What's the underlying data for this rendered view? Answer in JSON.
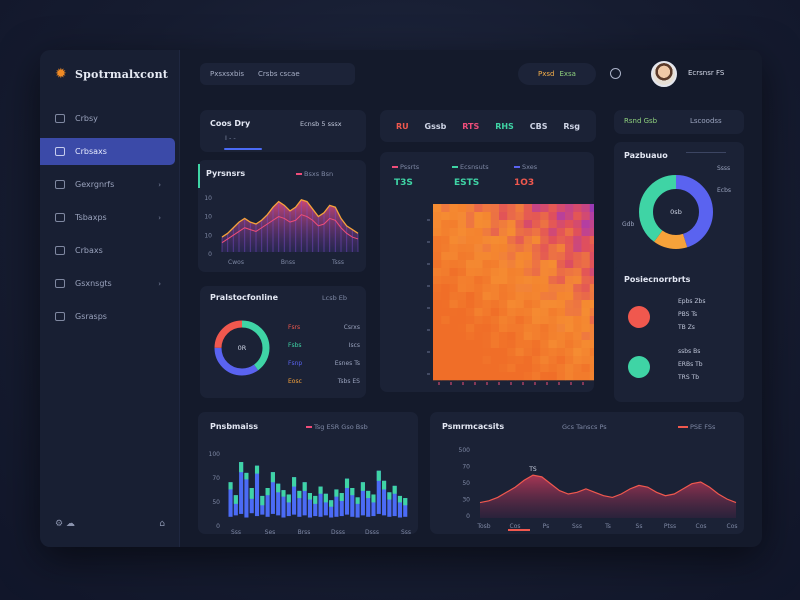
{
  "app": {
    "name": "Spotrmalxcont"
  },
  "sidebar": {
    "items": [
      {
        "label": "Crbsy",
        "caret": false
      },
      {
        "label": "Crbsaxs",
        "caret": false,
        "active": true
      },
      {
        "label": "Gexrgnrfs",
        "caret": true
      },
      {
        "label": "Tsbaxps",
        "caret": true
      },
      {
        "label": "Crbaxs",
        "caret": false
      },
      {
        "label": "Gsxnsgts",
        "caret": true
      },
      {
        "label": "Gsrasps",
        "caret": false
      }
    ],
    "bottom_left": "⚙ ☁",
    "bottom_right": "⌂"
  },
  "topbar": {
    "search_a": "Pxsxsxbis",
    "search_b": "Crsbs cscae",
    "status_pos": "Pxsd",
    "status_lab": "Exsa",
    "user": "Ecrsnsr FS"
  },
  "kpi_strip": {
    "items": [
      {
        "text": "RU",
        "color": "#f0584e"
      },
      {
        "text": "Gssb",
        "color": "#cfd5e6"
      },
      {
        "text": "RTS",
        "color": "#ef4d7a"
      },
      {
        "text": "RHS",
        "color": "#3fd4a5"
      },
      {
        "text": "CBS",
        "color": "#cfd5e6"
      },
      {
        "text": "Rsg",
        "color": "#cfd5e6"
      }
    ]
  },
  "crop_card": {
    "title": "Coos Dry",
    "sub": "I  -  -",
    "right": "Ecnsb  5 sssx"
  },
  "right_top_card": {
    "left": "Rsnd  Gsb",
    "right": "Lscoodss"
  },
  "area_card": {
    "title": "Pyrsnsrs",
    "legend": "Bsxs   Bsn",
    "x_labels": [
      "Cwos",
      "Bnss",
      "Tsss"
    ],
    "y_labels": [
      "10",
      "10",
      "10",
      "0"
    ]
  },
  "heatmap_card": {
    "legend_a": "Pssrts",
    "legend_b": "Ecsnsuts",
    "legend_c": "Sxes",
    "val_a": "T3S",
    "val_b": "ESTS",
    "val_c": "1O3"
  },
  "ring_card": {
    "title": "Pralstocfonline",
    "header_right": "Lcsb  Eb",
    "center": "0R",
    "rows": [
      {
        "label": "Fsrs",
        "value": "Csrxs",
        "color": "#f0584e"
      },
      {
        "label": "Fsbs",
        "value": "Iscs",
        "color": "#3fd4a5"
      },
      {
        "label": "Fsnp",
        "value": "Esnes Ts",
        "color": "#5a63f0"
      },
      {
        "label": "Eosc",
        "value": "Tsbs ES",
        "color": "#f6a23a"
      }
    ],
    "ring": [
      {
        "name": "",
        "value": 40,
        "color": "#3fd4a5"
      },
      {
        "name": "",
        "value": 35,
        "color": "#5a63f0"
      },
      {
        "name": "",
        "value": 25,
        "color": "#f0584e"
      }
    ]
  },
  "donut_card": {
    "title": "Pazbuauo",
    "labels": [
      "Ssss",
      "Ecbs",
      "Gdb"
    ],
    "center": "0sb",
    "donut": [
      {
        "name": "",
        "value": 45,
        "color": "#5a63f0"
      },
      {
        "name": "",
        "value": 15,
        "color": "#f6a23a"
      },
      {
        "name": "",
        "value": 40,
        "color": "#3fd4a5"
      }
    ]
  },
  "people_card": {
    "title": "Posiecnorrbrts",
    "row1": [
      "Epbs  Zbs",
      "PBS  Ts",
      "TB  Zs"
    ],
    "row2": [
      "ssbs  Bs",
      "ERBs  Tb",
      "TRS  Tb"
    ]
  },
  "bar_card": {
    "title": "Pnsbmaiss",
    "legend": "Tsg   ESR   Gso   Bsb",
    "x_labels": [
      "Sss",
      "Ses",
      "Brss",
      "Dsss",
      "Dsss",
      "Sss"
    ],
    "y_labels": [
      "100",
      "70",
      "50",
      "0"
    ]
  },
  "line_card": {
    "title": "Psmrmcacsits",
    "legend": "Gcs   Tanscs   Ps",
    "legend_right": "PSE  FSs",
    "annotation": "TS",
    "x_labels": [
      "Tosb",
      "Cos",
      "Ps",
      "Sss",
      "Ts",
      "Ss",
      "Ptss",
      "Cos",
      "Cos"
    ],
    "y_labels": [
      "500",
      "70",
      "50",
      "30",
      "0"
    ]
  },
  "chart_data": [
    {
      "type": "area",
      "title": "Pyrsnsrs",
      "x": [
        0,
        1,
        2,
        3,
        4,
        5,
        6,
        7,
        8,
        9,
        10,
        11,
        12,
        13,
        14,
        15,
        16,
        17,
        18,
        19,
        20,
        21,
        22,
        23,
        24
      ],
      "series": [
        {
          "values": [
            8,
            10,
            13,
            16,
            18,
            16,
            15,
            17,
            20,
            24,
            27,
            25,
            22,
            24,
            28,
            27,
            23,
            19,
            21,
            25,
            24,
            18,
            14,
            12,
            10
          ]
        },
        {
          "values": [
            5,
            7,
            9,
            11,
            13,
            12,
            11,
            13,
            15,
            17,
            19,
            18,
            16,
            17,
            20,
            19,
            17,
            14,
            15,
            18,
            17,
            13,
            10,
            8,
            7
          ]
        }
      ],
      "ylim": [
        0,
        30
      ]
    },
    {
      "type": "bar",
      "title": "Pnsbmaiss",
      "categories": [
        "1",
        "2",
        "3",
        "4",
        "5",
        "6",
        "7",
        "8",
        "9",
        "10",
        "11",
        "12",
        "13",
        "14",
        "15",
        "16",
        "17",
        "18",
        "19",
        "20",
        "21",
        "22",
        "23",
        "24",
        "25",
        "26",
        "27",
        "28",
        "29",
        "30",
        "31",
        "32",
        "33",
        "34"
      ],
      "series": [
        {
          "values": [
            48,
            28,
            72,
            62,
            35,
            70,
            26,
            40,
            58,
            44,
            38,
            30,
            52,
            36,
            46,
            34,
            28,
            42,
            30,
            24,
            38,
            32,
            50,
            40,
            28,
            46,
            36,
            30,
            60,
            48,
            34,
            42,
            30,
            26
          ]
        },
        {
          "values": [
            10,
            12,
            14,
            9,
            15,
            11,
            13,
            10,
            14,
            12,
            9,
            11,
            13,
            10,
            12,
            9,
            11,
            10,
            12,
            9,
            10,
            11,
            13,
            10,
            9,
            12,
            10,
            11,
            14,
            12,
            10,
            11,
            9,
            10
          ]
        }
      ],
      "ylim": [
        0,
        100
      ]
    },
    {
      "type": "area",
      "title": "Psmrmcacsits",
      "x": [
        0,
        1,
        2,
        3,
        4,
        5,
        6,
        7,
        8,
        9,
        10,
        11,
        12,
        13,
        14,
        15,
        16,
        17,
        18,
        19,
        20,
        21,
        22,
        23,
        24,
        25,
        26,
        27,
        28,
        29
      ],
      "series": [
        {
          "values": [
            18,
            20,
            24,
            30,
            36,
            44,
            50,
            48,
            40,
            32,
            28,
            30,
            34,
            30,
            26,
            24,
            28,
            34,
            38,
            36,
            30,
            26,
            28,
            34,
            40,
            42,
            36,
            28,
            22,
            18
          ]
        }
      ],
      "ylim": [
        0,
        70
      ]
    },
    {
      "type": "heatmap",
      "title": "",
      "rows": 12,
      "cols": 12
    }
  ]
}
